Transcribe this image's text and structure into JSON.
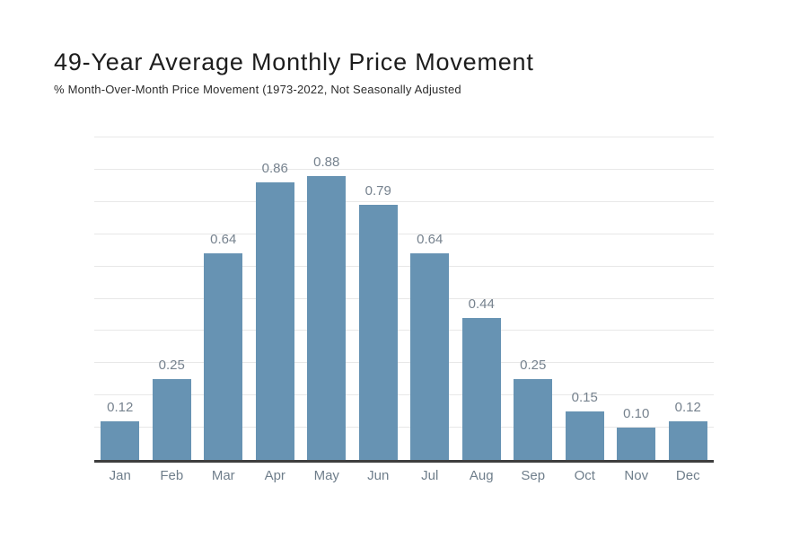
{
  "header": {
    "title": "49-Year Average Monthly Price Movement",
    "subtitle": "% Month-Over-Month Price Movement (1973-2022, Not Seasonally Adjusted"
  },
  "chart_data": {
    "type": "bar",
    "title": "49-Year Average Monthly Price Movement",
    "subtitle": "% Month-Over-Month Price Movement (1973-2022, Not Seasonally Adjusted",
    "categories": [
      "Jan",
      "Feb",
      "Mar",
      "Apr",
      "May",
      "Jun",
      "Jul",
      "Aug",
      "Sep",
      "Oct",
      "Nov",
      "Dec"
    ],
    "values": [
      0.12,
      0.25,
      0.64,
      0.86,
      0.88,
      0.79,
      0.64,
      0.44,
      0.25,
      0.15,
      0.1,
      0.12
    ],
    "value_labels": [
      "0.12",
      "0.25",
      "0.64",
      "0.86",
      "0.88",
      "0.79",
      "0.64",
      "0.44",
      "0.25",
      "0.15",
      "0.10",
      "0.12"
    ],
    "xlabel": "",
    "ylabel": "",
    "ylim": [
      0,
      1.01
    ],
    "grid": true,
    "gridline_step": 0.1,
    "y_tick_labels_visible": false,
    "legend_position": "none",
    "colors": {
      "bar": "#6793b3",
      "gridline": "#e8e8e8",
      "axis_line": "#3e3e3e",
      "value_label": "#76828e",
      "category_label": "#6f7e8b",
      "background": "#ffffff"
    }
  }
}
